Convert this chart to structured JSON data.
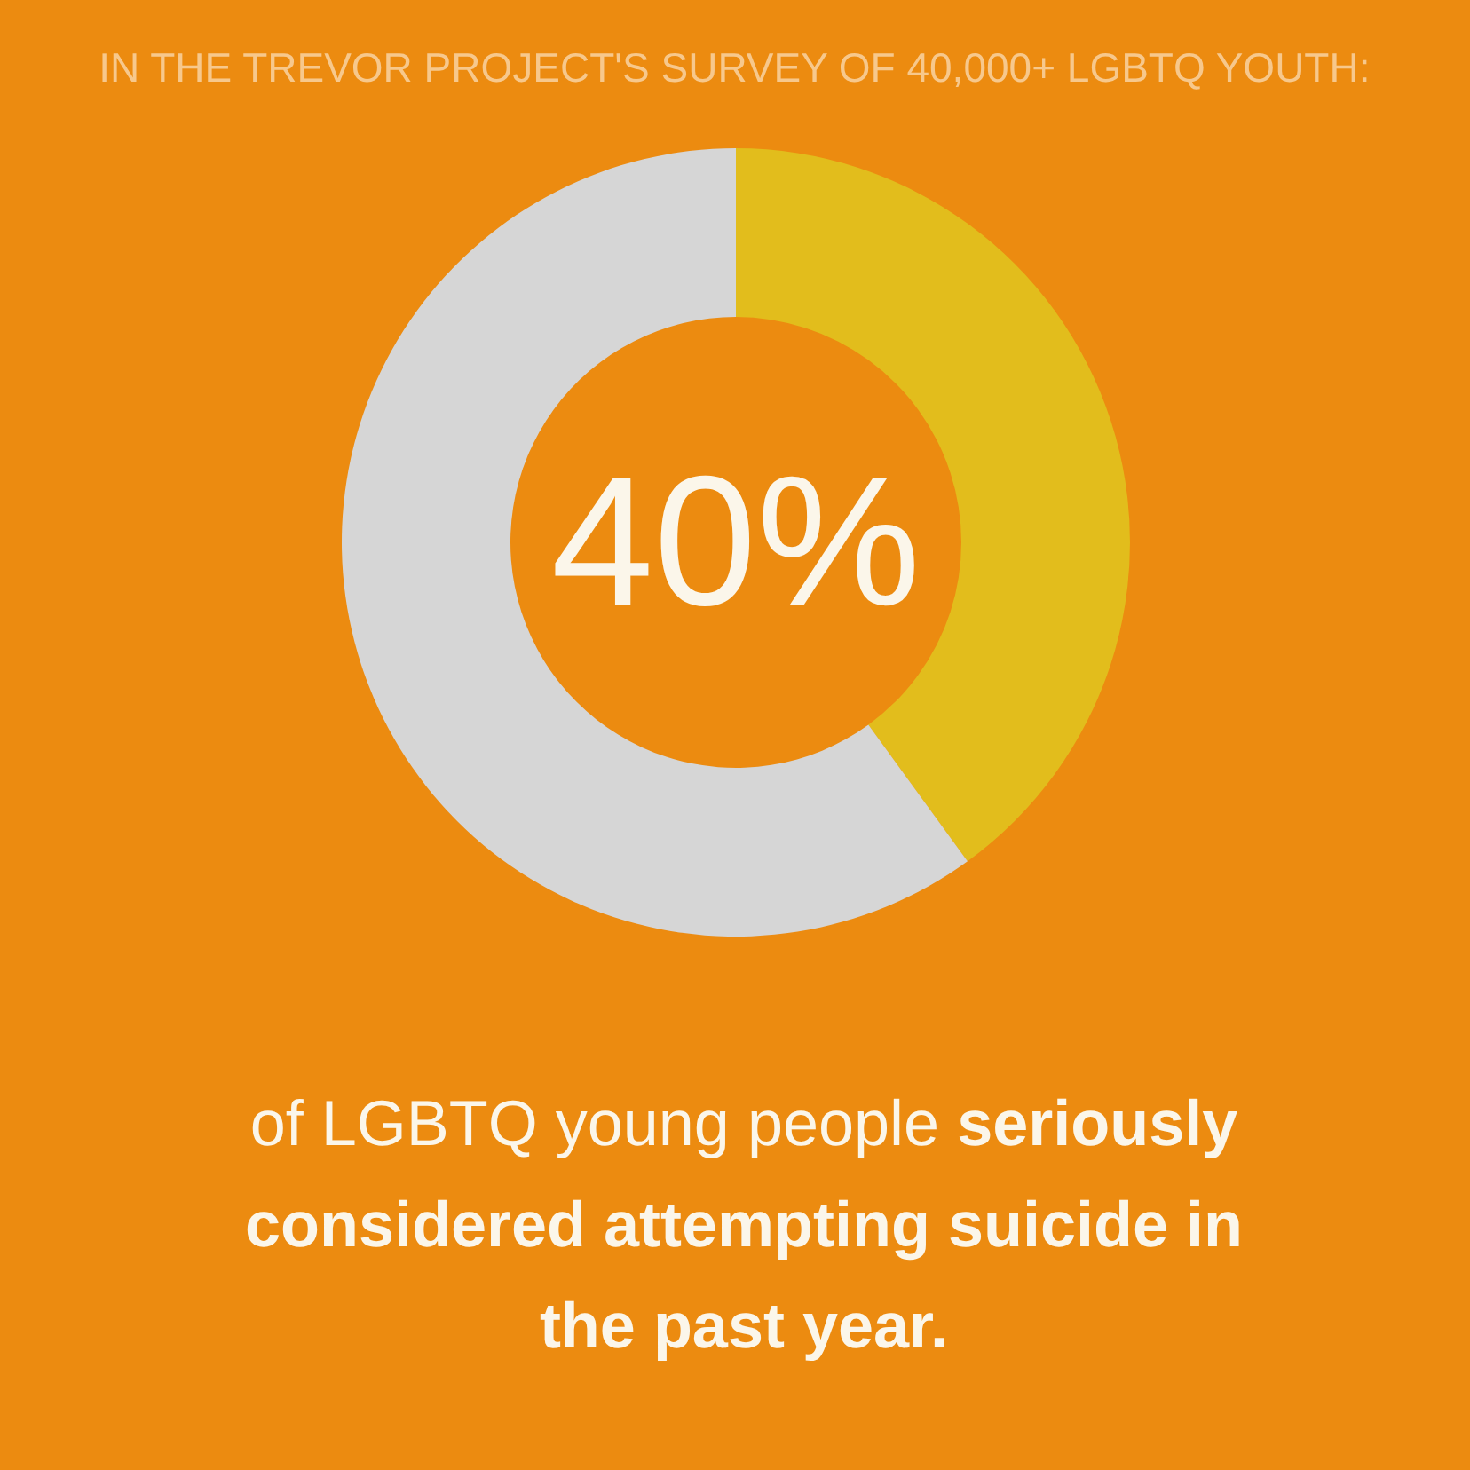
{
  "chart_data": {
    "type": "donut",
    "title": "IN THE TREVOR PROJECT'S SURVEY OF 40,000+ LGBTQ YOUTH:",
    "categories": [
      null,
      null
    ],
    "values": [
      40,
      60
    ],
    "colors": [
      "#e2bd1c",
      "#d6d6d6"
    ],
    "value_labels": [
      "40%",
      null
    ],
    "annotations": [
      "of LGBTQ young people",
      "seriously",
      "considered attempting suicide in the past year."
    ]
  }
}
